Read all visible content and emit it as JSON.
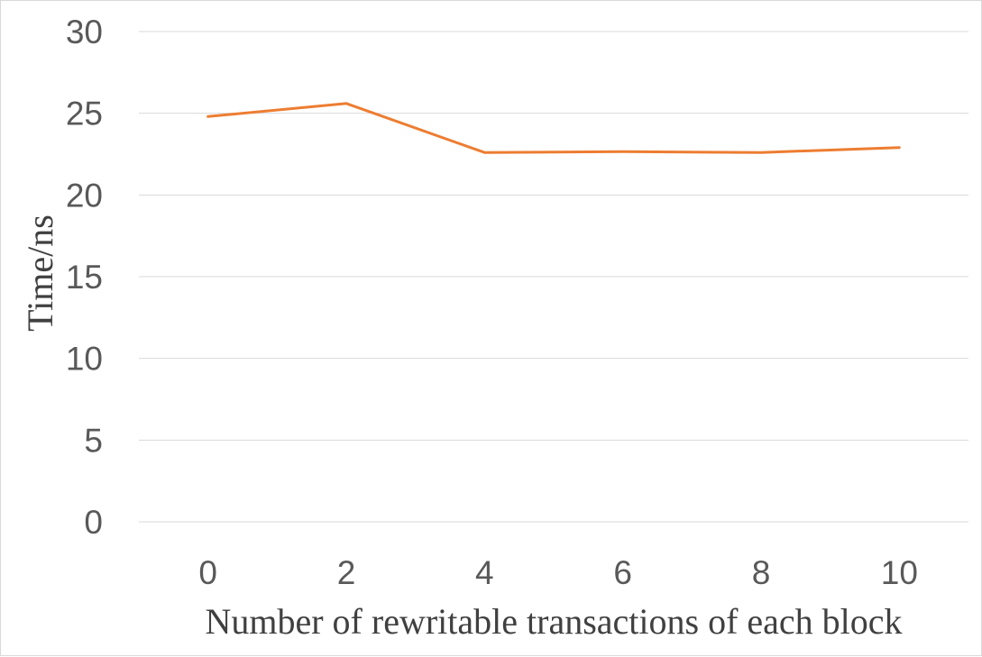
{
  "chart_data": {
    "type": "line",
    "title": "",
    "xlabel": "Number of rewritable transactions of each block",
    "ylabel": "Time/ns",
    "categories": [
      "0",
      "2",
      "4",
      "6",
      "8",
      "10"
    ],
    "series": [
      {
        "values": [
          24.8,
          25.6,
          22.6,
          22.65,
          22.6,
          22.9
        ],
        "color": "#ed7d31"
      }
    ],
    "ylim": [
      0,
      30
    ],
    "yticks": [
      "0",
      "5",
      "10",
      "15",
      "20",
      "25",
      "30"
    ],
    "grid": "horizontal",
    "legend": "none"
  }
}
